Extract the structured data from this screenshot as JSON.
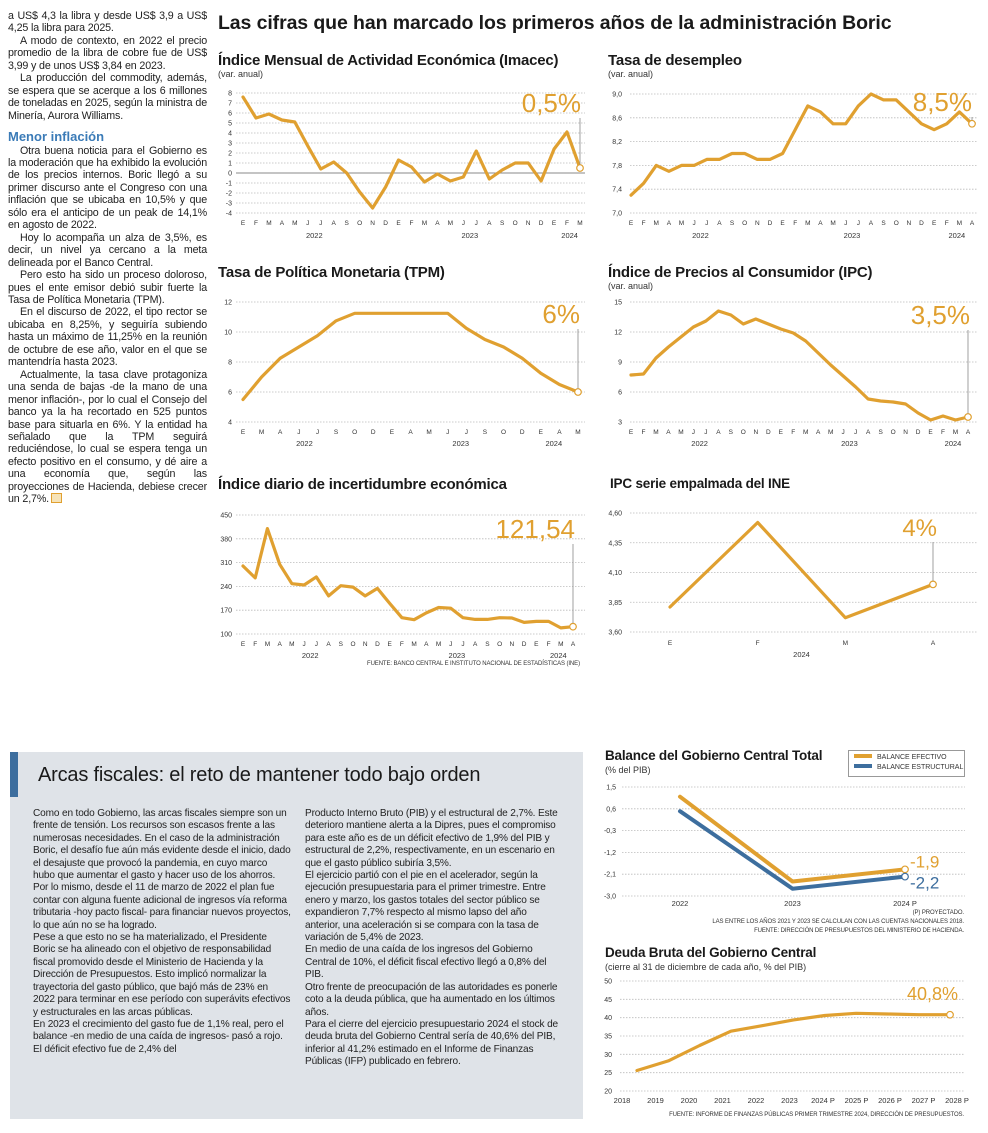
{
  "left_column": {
    "paragraphs_before": [
      "a US$ 4,3 la libra y desde US$ 3,9 a US$ 4,25 la libra para 2025.",
      "A modo de contexto, en 2022 el precio promedio de la libra de cobre fue de US$ 3,99 y de unos US$ 3,84 en 2023.",
      "La producción del commodity, además, se espera que se acerque a los 6 millones de toneladas en 2025, según la ministra de Minería, Aurora Williams."
    ],
    "subheading": "Menor inflación",
    "paragraphs_after": [
      "Otra buena noticia para el Gobierno es la moderación que ha exhibido la evolución de los precios internos. Boric llegó a su primer discurso ante el Congreso con una inflación que se ubicaba en 10,5% y que sólo era el anticipo de un peak de 14,1% en agosto de 2022.",
      "Hoy lo acompaña un alza de 3,5%, es decir, un nivel ya cercano a la meta delineada por el Banco Central.",
      "Pero esto ha sido un proceso doloroso, pues el ente emisor debió subir fuerte la Tasa de Política Monetaria (TPM).",
      "En el discurso de 2022, el tipo rector se ubicaba en 8,25%, y seguiría subiendo hasta un máximo de 11,25% en la reunión de octubre de ese año, valor en el que se mantendría hasta 2023.",
      "Actualmente, la tasa clave protagoniza una senda de bajas -de la mano de una menor inflación-, por lo cual el Consejo del banco ya la ha recortado en 525 puntos base para situarla en 6%. Y la entidad ha señalado que la TPM seguirá reduciéndose, lo cual se espera tenga un efecto positivo en el consumo, y dé aire a una economía que, según las proyecciones de Hacienda, debiese crecer un 2,7%."
    ]
  },
  "headline": "Las cifras que han marcado los primeros años de la administración Boric",
  "sources": {
    "top": "FUENTE: BANCO CENTRAL E INSTITUTO NACIONAL DE ESTADÍSTICAS (INE)",
    "balance_note1": "(P) PROYECTADO.",
    "balance_note2": "LAS ENTRE LOS AÑOS 2021 Y 2023 SE CALCULAN CON LAS CUENTAS NACIONALES 2018.",
    "balance_note3": "FUENTE: DIRECCIÓN DE PRESUPUESTOS DEL MINISTERIO DE HACIENDA.",
    "deuda": "FUENTE: INFORME DE FINANZAS PÚBLICAS PRIMER TRIMESTRE 2024, DIRECCIÓN DE PRESUPUESTOS."
  },
  "box": {
    "title": "Arcas fiscales: el reto de mantener todo bajo orden",
    "col1": [
      "Como en todo Gobierno, las arcas fiscales siempre son un frente de tensión. Los recursos son escasos frente a las numerosas necesidades. En el caso de la administración Boric, el desafío fue aún más evidente desde el inicio, dado el desajuste que provocó la pandemia, en cuyo marco hubo que aumentar el gasto y hacer uso de los ahorros.",
      "Por lo mismo, desde el 11 de marzo de 2022 el plan fue contar con alguna fuente adicional de ingresos vía reforma tributaria -hoy pacto fiscal- para financiar nuevos proyectos, lo que aún no se ha logrado.",
      "Pese a que esto no se ha materializado, el Presidente Boric se ha alineado con el objetivo de responsabilidad fiscal promovido desde el Ministerio de Hacienda y la Dirección de Presupuestos. Esto implicó normalizar la trayectoria del gasto público, que bajó más de 23% en 2022 para terminar en ese período con superávits efectivos y estructurales en las arcas públicas.",
      "En 2023 el crecimiento del gasto fue de 1,1% real, pero el balance -en medio de una caída de ingresos- pasó a rojo. El déficit efectivo fue de 2,4% del"
    ],
    "col2": [
      "Producto Interno Bruto (PIB) y el estructural de 2,7%. Este deterioro mantiene alerta a la Dipres, pues el compromiso para este año es de un déficit efectivo de 1,9% del PIB y estructural de 2,2%, respectivamente, en un escenario en que el gasto público subiría 3,5%.",
      "El ejercicio partió con el pie en el acelerador, según la ejecución presupuestaria para el primer trimestre. Entre enero y marzo, los gastos totales del sector público se expandieron 7,7% respecto al mismo lapso del año anterior, una aceleración si se compara con la tasa de variación de 5,4% de 2023.",
      "En medio de una caída de los ingresos del Gobierno Central de 10%, el déficit fiscal efectivo llegó a 0,8% del PIB.",
      "Otro frente de preocupación de las autoridades es ponerle coto a la deuda pública, que ha aumentado en los últimos años.",
      "Para el cierre del ejercicio presupuestario 2024 el stock de deuda bruta del Gobierno Central sería de 40,6% del PIB, inferior al 41,2% estimado en el Informe de Finanzas Públicas (IFP) publicado en febrero."
    ]
  },
  "colors": {
    "line": "#e0a030",
    "structural": "#3d6e9e",
    "heading": "#3b7bb7",
    "box_bg": "#dfe3e8"
  },
  "chart_data": [
    {
      "type": "line",
      "title": "Índice Mensual de Actividad Económica (Imacec)",
      "subtitle": "(var. anual)",
      "x": [
        "E",
        "F",
        "M",
        "A",
        "M",
        "J",
        "J",
        "A",
        "S",
        "O",
        "N",
        "D",
        "E",
        "F",
        "M",
        "A",
        "M",
        "J",
        "J",
        "A",
        "S",
        "O",
        "N",
        "D",
        "E",
        "F",
        "M"
      ],
      "years": [
        "2022",
        "2023",
        "2024"
      ],
      "yticks": [
        8,
        7,
        6,
        5,
        4,
        3,
        2,
        1,
        0,
        -1,
        -2,
        -3,
        -4
      ],
      "ytick_labels": [
        "8",
        "7",
        "6",
        "5",
        "4",
        "3",
        "2",
        "1",
        "0",
        "-1",
        "-2",
        "-3",
        "-4"
      ],
      "ylim": [
        -4,
        8
      ],
      "series": [
        {
          "values": [
            7.6,
            5.5,
            5.9,
            5.3,
            5.1,
            2.7,
            0.4,
            1.1,
            0.0,
            -1.9,
            -3.5,
            -1.4,
            1.3,
            0.6,
            -0.9,
            -0.1,
            -0.8,
            -0.4,
            2.2,
            -0.6,
            0.3,
            1.0,
            1.0,
            -0.8,
            2.4,
            4.1,
            0.5
          ]
        }
      ],
      "highlight": "0,5%"
    },
    {
      "type": "line",
      "title": "Tasa de desempleo",
      "subtitle": "(var. anual)",
      "x": [
        "E",
        "F",
        "M",
        "A",
        "M",
        "J",
        "J",
        "A",
        "S",
        "O",
        "N",
        "D",
        "E",
        "F",
        "M",
        "A",
        "M",
        "J",
        "J",
        "A",
        "S",
        "O",
        "N",
        "D",
        "E",
        "F",
        "M",
        "A"
      ],
      "years": [
        "2022",
        "2023",
        "2024"
      ],
      "yticks": [
        9.0,
        8.6,
        8.2,
        7.8,
        7.4,
        7.0
      ],
      "ytick_labels": [
        "9,0",
        "8,6",
        "8,2",
        "7,8",
        "7,4",
        "7,0"
      ],
      "ylim": [
        7.0,
        9.0
      ],
      "series": [
        {
          "values": [
            7.3,
            7.5,
            7.8,
            7.7,
            7.8,
            7.8,
            7.9,
            7.9,
            8.0,
            8.0,
            7.9,
            7.9,
            8.0,
            8.4,
            8.8,
            8.7,
            8.5,
            8.5,
            8.8,
            9.0,
            8.9,
            8.9,
            8.7,
            8.5,
            8.4,
            8.5,
            8.7,
            8.5
          ]
        }
      ],
      "highlight": "8,5%"
    },
    {
      "type": "line",
      "title": "Tasa de Política Monetaria (TPM)",
      "x": [
        "E",
        "M",
        "A",
        "J",
        "J",
        "S",
        "O",
        "D",
        "E",
        "A",
        "M",
        "J",
        "J",
        "S",
        "O",
        "D",
        "E",
        "A",
        "M"
      ],
      "years": [
        "2022",
        "2023",
        "2024"
      ],
      "yticks": [
        12,
        10,
        8,
        6,
        4
      ],
      "ytick_labels": [
        "12",
        "10",
        "8",
        "6",
        "4"
      ],
      "ylim": [
        4,
        12
      ],
      "series": [
        {
          "values": [
            5.5,
            7.0,
            8.25,
            9.0,
            9.75,
            10.75,
            11.25,
            11.25,
            11.25,
            11.25,
            11.25,
            11.25,
            10.25,
            9.5,
            9.0,
            8.25,
            7.25,
            6.5,
            6.0
          ]
        }
      ],
      "highlight": "6%"
    },
    {
      "type": "line",
      "title": "Índice de Precios al Consumidor (IPC)",
      "subtitle": "(var. anual)",
      "x": [
        "E",
        "F",
        "M",
        "A",
        "M",
        "J",
        "J",
        "A",
        "S",
        "O",
        "N",
        "D",
        "E",
        "F",
        "M",
        "A",
        "M",
        "J",
        "J",
        "A",
        "S",
        "O",
        "N",
        "D",
        "E",
        "F",
        "M",
        "A"
      ],
      "years": [
        "2022",
        "2023",
        "2024"
      ],
      "yticks": [
        15,
        12,
        9,
        6,
        3
      ],
      "ytick_labels": [
        "15",
        "12",
        "9",
        "6",
        "3"
      ],
      "ylim": [
        3,
        15
      ],
      "series": [
        {
          "values": [
            7.7,
            7.8,
            9.4,
            10.5,
            11.5,
            12.5,
            13.1,
            14.1,
            13.7,
            12.8,
            13.3,
            12.8,
            12.3,
            11.9,
            11.1,
            9.9,
            8.7,
            7.6,
            6.5,
            5.3,
            5.1,
            5.0,
            4.8,
            3.9,
            3.2,
            3.6,
            3.2,
            3.5
          ]
        }
      ],
      "highlight": "3,5%"
    },
    {
      "type": "line",
      "title": "Índice diario de incertidumbre económica",
      "x": [
        "E",
        "F",
        "M",
        "A",
        "M",
        "J",
        "J",
        "A",
        "S",
        "O",
        "N",
        "D",
        "E",
        "F",
        "M",
        "A",
        "M",
        "J",
        "J",
        "A",
        "S",
        "O",
        "N",
        "D",
        "E",
        "F",
        "M",
        "A"
      ],
      "years": [
        "2022",
        "2023",
        "2024"
      ],
      "yticks": [
        450,
        380,
        310,
        240,
        170,
        100
      ],
      "ytick_labels": [
        "450",
        "380",
        "310",
        "240",
        "170",
        "100"
      ],
      "ylim": [
        100,
        450
      ],
      "series": [
        {
          "values": [
            300,
            265,
            410,
            305,
            248,
            244,
            268,
            212,
            242,
            238,
            212,
            234,
            190,
            148,
            142,
            162,
            178,
            176,
            148,
            143,
            143,
            148,
            147,
            134,
            137,
            137,
            118,
            121.54
          ]
        }
      ],
      "highlight": "121,54"
    },
    {
      "type": "line",
      "title": "IPC serie empalmada del INE",
      "x": [
        "E",
        "F",
        "M",
        "A"
      ],
      "years": [
        "2024"
      ],
      "yticks": [
        4.6,
        4.35,
        4.1,
        3.85,
        3.6
      ],
      "ytick_labels": [
        "4,60",
        "4,35",
        "4,10",
        "3,85",
        "3,60"
      ],
      "ylim": [
        3.6,
        4.6
      ],
      "series": [
        {
          "values": [
            3.81,
            4.52,
            3.72,
            4.0
          ]
        }
      ],
      "highlight": "4%"
    },
    {
      "type": "line",
      "title": "Balance del Gobierno Central Total",
      "subtitle": "(% del PIB)",
      "x": [
        "2022",
        "2023",
        "2024 P"
      ],
      "yticks": [
        1.5,
        0.6,
        -0.3,
        -1.2,
        -2.1,
        -3.0
      ],
      "ytick_labels": [
        "1,5",
        "0,6",
        "-0,3",
        "-1,2",
        "-2,1",
        "-3,0"
      ],
      "ylim": [
        -3.0,
        1.5
      ],
      "legend": "top-right",
      "series": [
        {
          "name": "BALANCE EFECTIVO",
          "values": [
            1.1,
            -2.4,
            -1.9
          ],
          "highlight": "-1,9"
        },
        {
          "name": "BALANCE ESTRUCTURAL",
          "values": [
            0.5,
            -2.7,
            -2.2
          ],
          "highlight": "-2,2"
        }
      ]
    },
    {
      "type": "line",
      "title": "Deuda Bruta del Gobierno Central",
      "subtitle": "(cierre al 31 de diciembre de cada año, % del PIB)",
      "x": [
        "2018",
        "2019",
        "2020",
        "2021",
        "2022",
        "2023",
        "2024 P",
        "2025 P",
        "2026 P",
        "2027 P",
        "2028 P"
      ],
      "yticks": [
        50,
        45,
        40,
        35,
        30,
        25,
        20
      ],
      "ytick_labels": [
        "50",
        "45",
        "40",
        "35",
        "30",
        "25",
        "20"
      ],
      "ylim": [
        20,
        50
      ],
      "series": [
        {
          "values": [
            25.6,
            28.2,
            32.4,
            36.3,
            37.8,
            39.4,
            40.6,
            41.2,
            41.0,
            40.8,
            40.8
          ]
        }
      ],
      "highlight": "40,8%"
    }
  ]
}
